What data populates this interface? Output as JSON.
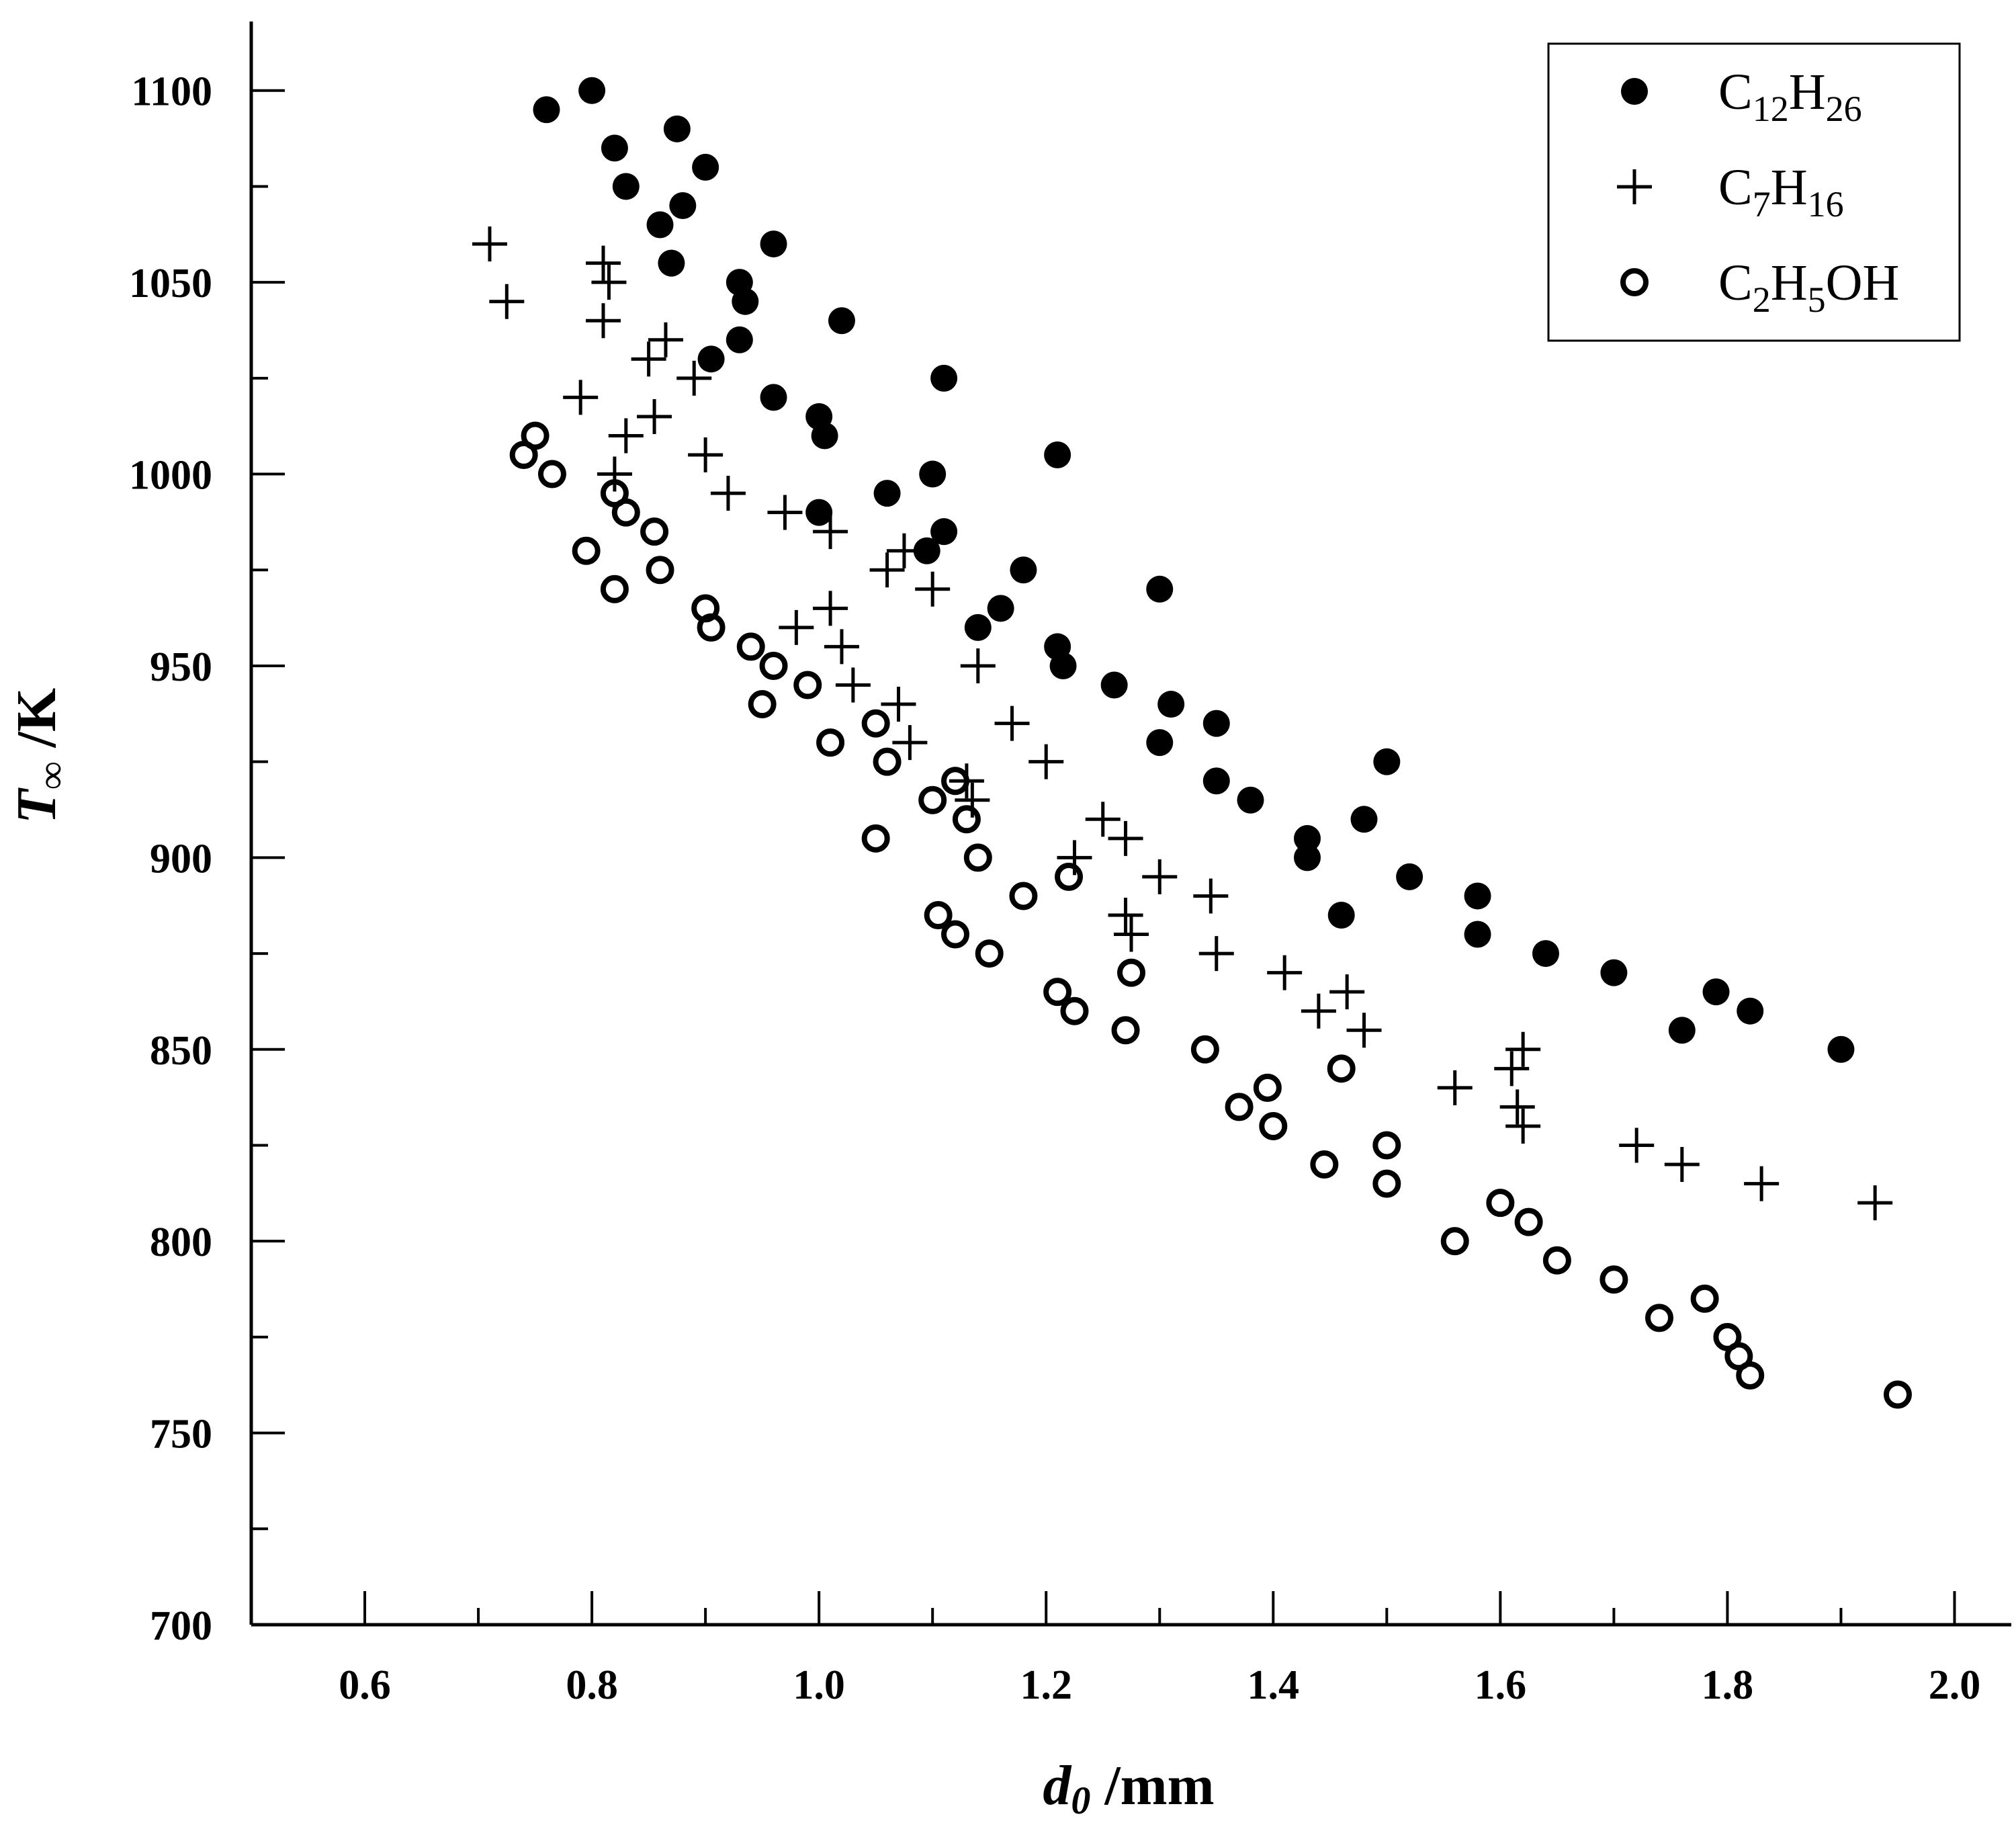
{
  "chart_data": {
    "type": "scatter",
    "xlabel": "d0 /mm",
    "ylabel": "T∞ /K",
    "xlim": [
      0.5,
      2.05
    ],
    "ylim": [
      700,
      1118
    ],
    "x_ticks": [
      "0.6",
      "0.8",
      "1.0",
      "1.2",
      "1.4",
      "1.6",
      "1.8",
      "2.0"
    ],
    "y_ticks": [
      "700",
      "750",
      "800",
      "850",
      "900",
      "950",
      "1000",
      "1050",
      "1100"
    ],
    "legend_position": "top-right",
    "series": [
      {
        "name": "C12H26",
        "marker": "filled-circle",
        "legend": {
          "base1": "C",
          "sub1": "12",
          "base2": "H",
          "sub2": "26",
          "base3": ""
        },
        "points": [
          [
            0.76,
            1095
          ],
          [
            0.8,
            1100
          ],
          [
            0.82,
            1085
          ],
          [
            0.83,
            1075
          ],
          [
            0.86,
            1065
          ],
          [
            0.87,
            1055
          ],
          [
            0.875,
            1090
          ],
          [
            0.88,
            1070
          ],
          [
            0.9,
            1080
          ],
          [
            0.905,
            1030
          ],
          [
            0.93,
            1050
          ],
          [
            0.935,
            1045
          ],
          [
            0.93,
            1035
          ],
          [
            0.96,
            1060
          ],
          [
            0.96,
            1020
          ],
          [
            1.0,
            1015
          ],
          [
            1.005,
            1010
          ],
          [
            1.02,
            1040
          ],
          [
            1.0,
            990
          ],
          [
            1.06,
            995
          ],
          [
            1.1,
            1000
          ],
          [
            1.11,
            1025
          ],
          [
            1.11,
            985
          ],
          [
            1.095,
            980
          ],
          [
            1.14,
            960
          ],
          [
            1.16,
            965
          ],
          [
            1.18,
            975
          ],
          [
            1.21,
            955
          ],
          [
            1.215,
            950
          ],
          [
            1.21,
            1005
          ],
          [
            1.26,
            945
          ],
          [
            1.3,
            970
          ],
          [
            1.3,
            930
          ],
          [
            1.31,
            940
          ],
          [
            1.35,
            935
          ],
          [
            1.35,
            920
          ],
          [
            1.38,
            915
          ],
          [
            1.43,
            905
          ],
          [
            1.43,
            900
          ],
          [
            1.46,
            885
          ],
          [
            1.48,
            910
          ],
          [
            1.5,
            925
          ],
          [
            1.52,
            895
          ],
          [
            1.58,
            890
          ],
          [
            1.58,
            880
          ],
          [
            1.64,
            875
          ],
          [
            1.7,
            870
          ],
          [
            1.76,
            855
          ],
          [
            1.79,
            865
          ],
          [
            1.82,
            860
          ],
          [
            1.9,
            850
          ]
        ]
      },
      {
        "name": "C7H16",
        "marker": "plus",
        "legend": {
          "base1": "C",
          "sub1": "7",
          "base2": "H",
          "sub2": "16",
          "base3": ""
        },
        "points": [
          [
            0.71,
            1060
          ],
          [
            0.725,
            1045
          ],
          [
            0.81,
            1055
          ],
          [
            0.815,
            1050
          ],
          [
            0.81,
            1040
          ],
          [
            0.79,
            1020
          ],
          [
            0.83,
            1010
          ],
          [
            0.82,
            1000
          ],
          [
            0.85,
            1030
          ],
          [
            0.855,
            1015
          ],
          [
            0.865,
            1035
          ],
          [
            0.89,
            1025
          ],
          [
            0.9,
            1005
          ],
          [
            0.92,
            995
          ],
          [
            0.97,
            990
          ],
          [
            1.01,
            985
          ],
          [
            0.98,
            960
          ],
          [
            1.01,
            965
          ],
          [
            1.02,
            955
          ],
          [
            1.03,
            945
          ],
          [
            1.06,
            975
          ],
          [
            1.075,
            980
          ],
          [
            1.1,
            970
          ],
          [
            1.07,
            940
          ],
          [
            1.08,
            930
          ],
          [
            1.13,
            920
          ],
          [
            1.135,
            915
          ],
          [
            1.14,
            950
          ],
          [
            1.17,
            935
          ],
          [
            1.2,
            925
          ],
          [
            1.225,
            900
          ],
          [
            1.25,
            910
          ],
          [
            1.27,
            905
          ],
          [
            1.27,
            885
          ],
          [
            1.275,
            880
          ],
          [
            1.3,
            895
          ],
          [
            1.345,
            890
          ],
          [
            1.35,
            875
          ],
          [
            1.41,
            870
          ],
          [
            1.44,
            860
          ],
          [
            1.465,
            865
          ],
          [
            1.48,
            855
          ],
          [
            1.56,
            840
          ],
          [
            1.61,
            845
          ],
          [
            1.62,
            850
          ],
          [
            1.615,
            835
          ],
          [
            1.62,
            830
          ],
          [
            1.72,
            825
          ],
          [
            1.76,
            820
          ],
          [
            1.83,
            815
          ],
          [
            1.93,
            810
          ]
        ]
      },
      {
        "name": "C2H5OH",
        "marker": "open-circle",
        "legend": {
          "base1": "C",
          "sub1": "2",
          "base2": "H",
          "sub2": "5",
          "base3": "OH"
        },
        "points": [
          [
            0.74,
            1005
          ],
          [
            0.75,
            1010
          ],
          [
            0.765,
            1000
          ],
          [
            0.795,
            980
          ],
          [
            0.82,
            970
          ],
          [
            0.82,
            995
          ],
          [
            0.83,
            990
          ],
          [
            0.855,
            985
          ],
          [
            0.86,
            975
          ],
          [
            0.9,
            965
          ],
          [
            0.905,
            960
          ],
          [
            0.94,
            955
          ],
          [
            0.96,
            950
          ],
          [
            0.95,
            940
          ],
          [
            0.99,
            945
          ],
          [
            1.01,
            930
          ],
          [
            1.05,
            935
          ],
          [
            1.06,
            925
          ],
          [
            1.05,
            905
          ],
          [
            1.1,
            915
          ],
          [
            1.12,
            920
          ],
          [
            1.13,
            910
          ],
          [
            1.14,
            900
          ],
          [
            1.105,
            885
          ],
          [
            1.12,
            880
          ],
          [
            1.15,
            875
          ],
          [
            1.18,
            890
          ],
          [
            1.22,
            895
          ],
          [
            1.21,
            865
          ],
          [
            1.225,
            860
          ],
          [
            1.275,
            870
          ],
          [
            1.27,
            855
          ],
          [
            1.34,
            850
          ],
          [
            1.37,
            835
          ],
          [
            1.395,
            840
          ],
          [
            1.4,
            830
          ],
          [
            1.445,
            820
          ],
          [
            1.46,
            845
          ],
          [
            1.5,
            825
          ],
          [
            1.5,
            815
          ],
          [
            1.56,
            800
          ],
          [
            1.6,
            810
          ],
          [
            1.625,
            805
          ],
          [
            1.65,
            795
          ],
          [
            1.7,
            790
          ],
          [
            1.74,
            780
          ],
          [
            1.78,
            785
          ],
          [
            1.8,
            775
          ],
          [
            1.81,
            770
          ],
          [
            1.82,
            765
          ],
          [
            1.95,
            760
          ]
        ]
      }
    ]
  }
}
